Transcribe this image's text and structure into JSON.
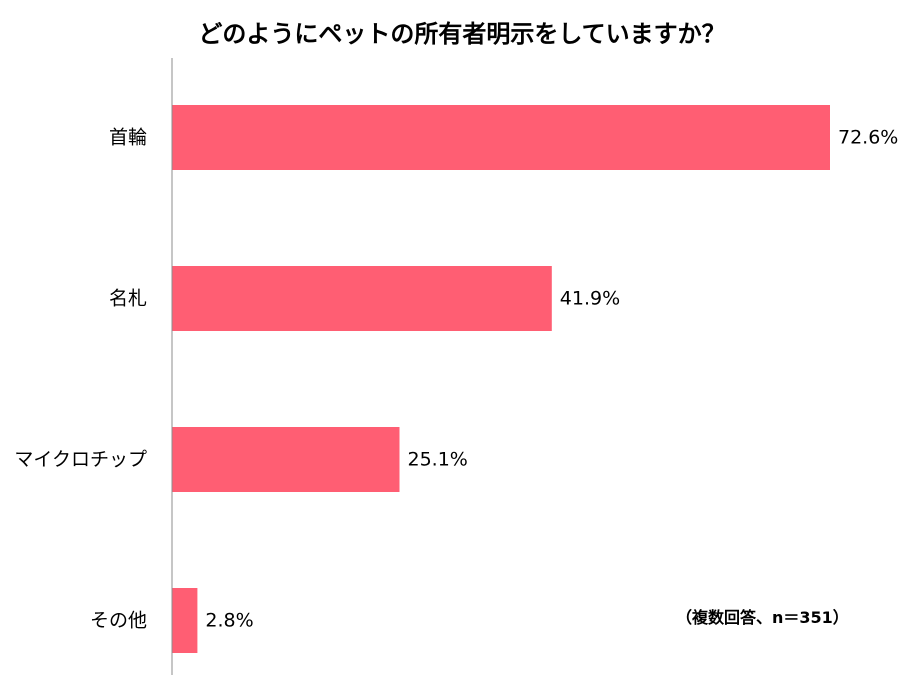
{
  "chart_data": {
    "type": "bar",
    "orientation": "horizontal",
    "title": "どのようにペットの所有者明示をしていますか？",
    "note": "（複数回答、n＝351）",
    "categories": [
      "首輪",
      "名札",
      "マイクロチップ",
      "その他"
    ],
    "values": [
      72.6,
      41.9,
      25.1,
      2.8
    ],
    "value_labels": [
      "72.6%",
      "41.9%",
      "25.1%",
      "2.8%"
    ],
    "unit": "%",
    "xlim": [
      0,
      72.6
    ],
    "grid": false,
    "legend": "none",
    "bar_color": "#FF5E73",
    "axis_color": "#8C8C8C"
  }
}
